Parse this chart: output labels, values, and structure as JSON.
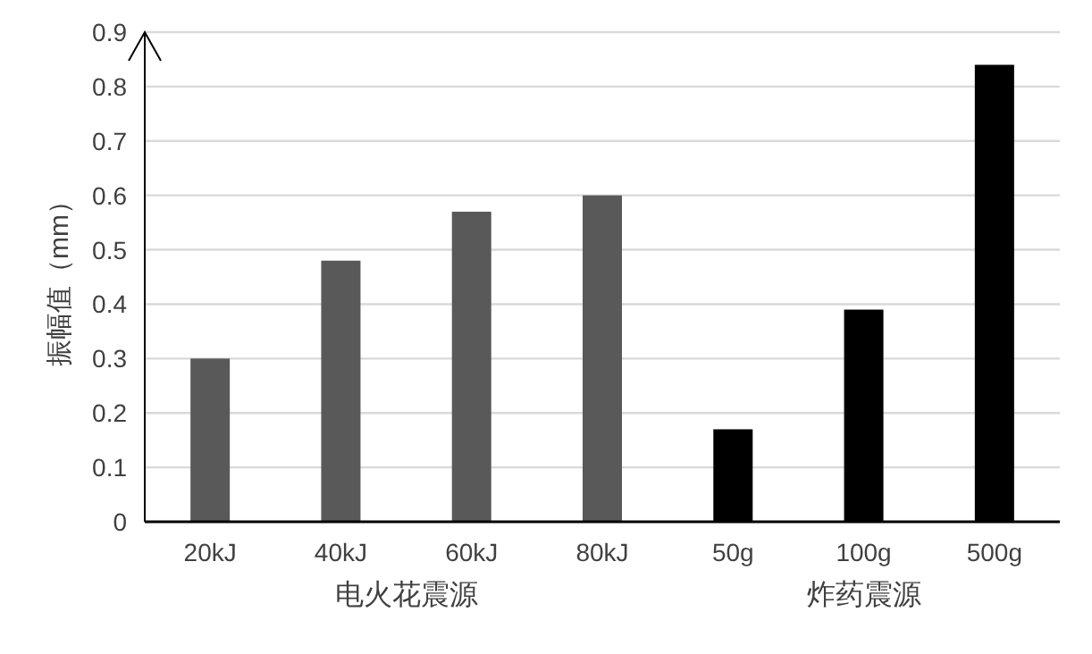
{
  "chart_data": {
    "type": "bar",
    "ylabel": "振幅值（mm）",
    "categories": [
      "20kJ",
      "40kJ",
      "60kJ",
      "80kJ",
      "50g",
      "100g",
      "500g"
    ],
    "series": [
      {
        "name": "电火花震源",
        "color": "#595959",
        "values": [
          0.3,
          0.48,
          0.57,
          0.6,
          null,
          null,
          null
        ]
      },
      {
        "name": "炸药震源",
        "color": "#000000",
        "values": [
          null,
          null,
          null,
          null,
          0.17,
          0.39,
          0.84
        ]
      }
    ],
    "ylim": [
      0,
      0.9
    ],
    "yticks": [
      0,
      0.1,
      0.2,
      0.3,
      0.4,
      0.5,
      0.6,
      0.7,
      0.8,
      0.9
    ],
    "grid": "y"
  }
}
